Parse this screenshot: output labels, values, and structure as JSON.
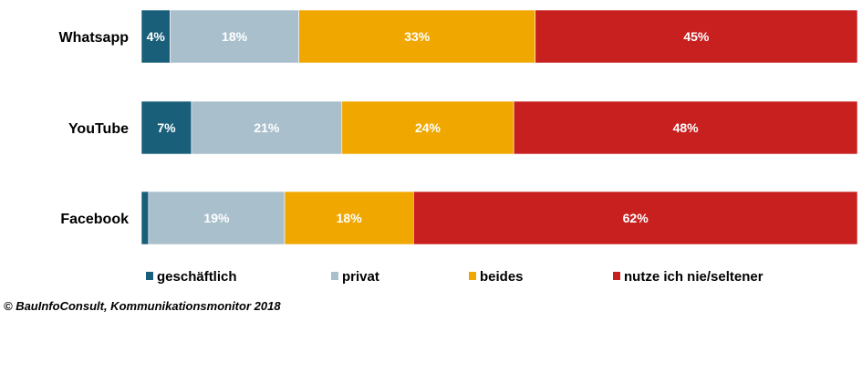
{
  "chart_data": {
    "type": "bar",
    "orientation": "horizontal",
    "stacked": true,
    "categories": [
      "Whatsapp",
      "YouTube",
      "Facebook"
    ],
    "series": [
      {
        "name": "geschäftlich",
        "color": "#1a5f7a",
        "values": [
          4,
          7,
          1
        ],
        "labels": [
          "4%",
          "7%",
          ""
        ]
      },
      {
        "name": "privat",
        "color": "#a9bfcc",
        "values": [
          18,
          21,
          19
        ],
        "labels": [
          "18%",
          "21%",
          "19%"
        ]
      },
      {
        "name": "beides",
        "color": "#f0a800",
        "values": [
          33,
          24,
          18
        ],
        "labels": [
          "33%",
          "24%",
          "18%"
        ]
      },
      {
        "name": "nutze ich nie/seltener",
        "color": "#c8201f",
        "values": [
          45,
          48,
          62
        ],
        "labels": [
          "45%",
          "48%",
          "62%"
        ]
      }
    ],
    "xlim": [
      0,
      100
    ],
    "grid": false,
    "legend_position": "bottom",
    "source": "© BauInfoConsult, Kommunikationsmonitor 2018"
  }
}
